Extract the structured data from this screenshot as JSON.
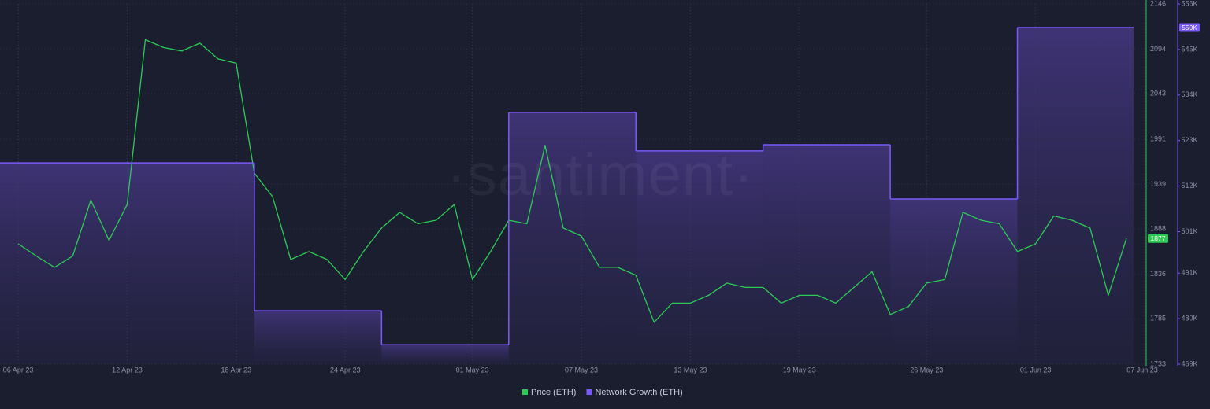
{
  "chart_data": {
    "type": "line",
    "watermark": "·santiment·",
    "xlim": [
      "2023-04-05",
      "2023-06-07"
    ],
    "xticks": [
      {
        "value": "2023-04-06",
        "label": "06 Apr 23"
      },
      {
        "value": "2023-04-12",
        "label": "12 Apr 23"
      },
      {
        "value": "2023-04-18",
        "label": "18 Apr 23"
      },
      {
        "value": "2023-04-24",
        "label": "24 Apr 23"
      },
      {
        "value": "2023-05-01",
        "label": "01 May 23"
      },
      {
        "value": "2023-05-07",
        "label": "07 May 23"
      },
      {
        "value": "2023-05-13",
        "label": "13 May 23"
      },
      {
        "value": "2023-05-19",
        "label": "19 May 23"
      },
      {
        "value": "2023-05-26",
        "label": "26 May 23"
      },
      {
        "value": "2023-06-01",
        "label": "01 Jun 23"
      },
      {
        "value": "2023-06-07",
        "label": "07 Jun 23"
      }
    ],
    "ylim": [
      1733,
      2146
    ],
    "yticks": [
      1733,
      1785,
      1836,
      1888,
      1939,
      1991,
      2043,
      2094,
      2146
    ],
    "y2lim": [
      469000,
      556000
    ],
    "y2ticks": [
      {
        "value": 469000,
        "label": "469K"
      },
      {
        "value": 480000,
        "label": "480K"
      },
      {
        "value": 491000,
        "label": "491K"
      },
      {
        "value": 501000,
        "label": "501K"
      },
      {
        "value": 512000,
        "label": "512K"
      },
      {
        "value": 523000,
        "label": "523K"
      },
      {
        "value": 534000,
        "label": "534K"
      },
      {
        "value": 545000,
        "label": "545K"
      },
      {
        "value": 556000,
        "label": "556K"
      }
    ],
    "grid": true,
    "series": [
      {
        "name": "Price (ETH)",
        "color": "#2dcb56",
        "x": [
          "2023-04-06",
          "2023-04-07",
          "2023-04-08",
          "2023-04-09",
          "2023-04-10",
          "2023-04-11",
          "2023-04-12",
          "2023-04-13",
          "2023-04-14",
          "2023-04-15",
          "2023-04-16",
          "2023-04-17",
          "2023-04-18",
          "2023-04-19",
          "2023-04-20",
          "2023-04-21",
          "2023-04-22",
          "2023-04-23",
          "2023-04-24",
          "2023-04-25",
          "2023-04-26",
          "2023-04-27",
          "2023-04-28",
          "2023-04-29",
          "2023-04-30",
          "2023-05-01",
          "2023-05-02",
          "2023-05-03",
          "2023-05-04",
          "2023-05-05",
          "2023-05-06",
          "2023-05-07",
          "2023-05-08",
          "2023-05-09",
          "2023-05-10",
          "2023-05-11",
          "2023-05-12",
          "2023-05-13",
          "2023-05-14",
          "2023-05-15",
          "2023-05-16",
          "2023-05-17",
          "2023-05-18",
          "2023-05-19",
          "2023-05-20",
          "2023-05-21",
          "2023-05-22",
          "2023-05-23",
          "2023-05-24",
          "2023-05-25",
          "2023-05-26",
          "2023-05-27",
          "2023-05-28",
          "2023-05-29",
          "2023-05-30",
          "2023-05-31",
          "2023-06-01",
          "2023-06-02",
          "2023-06-03",
          "2023-06-04",
          "2023-06-05",
          "2023-06-06"
        ],
        "values": [
          1871,
          1857,
          1844,
          1857,
          1921,
          1875,
          1916,
          2105,
          2096,
          2092,
          2101,
          2083,
          2078,
          1952,
          1925,
          1853,
          1862,
          1853,
          1830,
          1862,
          1889,
          1907,
          1894,
          1898,
          1916,
          1830,
          1862,
          1898,
          1894,
          1984,
          1889,
          1880,
          1844,
          1844,
          1835,
          1781,
          1803,
          1803,
          1812,
          1826,
          1821,
          1821,
          1803,
          1812,
          1812,
          1803,
          1821,
          1839,
          1790,
          1799,
          1826,
          1830,
          1907,
          1898,
          1894,
          1862,
          1871,
          1903,
          1898,
          1889,
          1812,
          1877
        ]
      },
      {
        "name": "Network Growth (ETH)",
        "color": "#7a5af8",
        "axis": "y2",
        "step": true,
        "x": [
          "2023-04-05",
          "2023-04-19",
          "2023-04-26",
          "2023-05-03",
          "2023-05-10",
          "2023-05-17",
          "2023-05-24",
          "2023-05-31"
        ],
        "values": [
          517600,
          481900,
          473700,
          529800,
          520500,
          522000,
          508900,
          550300
        ],
        "value_labels": [
          null,
          null,
          null,
          null,
          null,
          null,
          null,
          "550K"
        ]
      }
    ]
  }
}
